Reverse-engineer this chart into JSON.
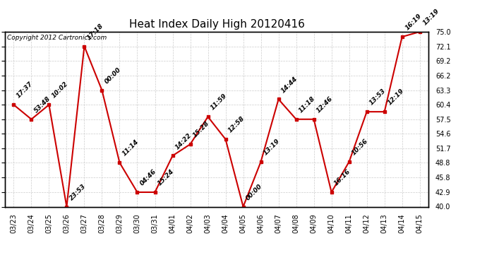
{
  "title": "Heat Index Daily High 20120416",
  "copyright": "Copyright 2012 Cartronics.com",
  "x_labels": [
    "03/23",
    "03/24",
    "03/25",
    "03/26",
    "03/27",
    "03/28",
    "03/29",
    "03/30",
    "03/31",
    "04/01",
    "04/02",
    "04/03",
    "04/04",
    "04/05",
    "04/06",
    "04/07",
    "04/08",
    "04/09",
    "04/10",
    "04/11",
    "04/12",
    "04/13",
    "04/14",
    "04/15"
  ],
  "y_values": [
    60.4,
    57.5,
    60.4,
    40.0,
    72.1,
    63.3,
    48.8,
    42.9,
    42.9,
    50.2,
    52.5,
    58.0,
    53.5,
    40.0,
    49.0,
    61.5,
    57.5,
    57.5,
    42.9,
    49.0,
    59.0,
    59.0,
    74.0,
    75.0
  ],
  "point_labels": [
    "17:37",
    "53:48",
    "10:02",
    "23:53",
    "17:18",
    "00:00",
    "11:14",
    "04:46",
    "15:24",
    "14:22",
    "15:28",
    "11:59",
    "12:58",
    "00:00",
    "13:19",
    "14:44",
    "11:18",
    "12:46",
    "16:16",
    "10:56",
    "13:53",
    "12:19",
    "16:19",
    "13:19"
  ],
  "ylim": [
    40.0,
    75.0
  ],
  "yticks": [
    40.0,
    42.9,
    45.8,
    48.8,
    51.7,
    54.6,
    57.5,
    60.4,
    63.3,
    66.2,
    69.2,
    72.1,
    75.0
  ],
  "line_color": "#cc0000",
  "marker_color": "#cc0000",
  "background_color": "#ffffff",
  "grid_color": "#cccccc",
  "title_fontsize": 11,
  "label_fontsize": 6.5,
  "tick_fontsize": 7,
  "copyright_fontsize": 6.5
}
